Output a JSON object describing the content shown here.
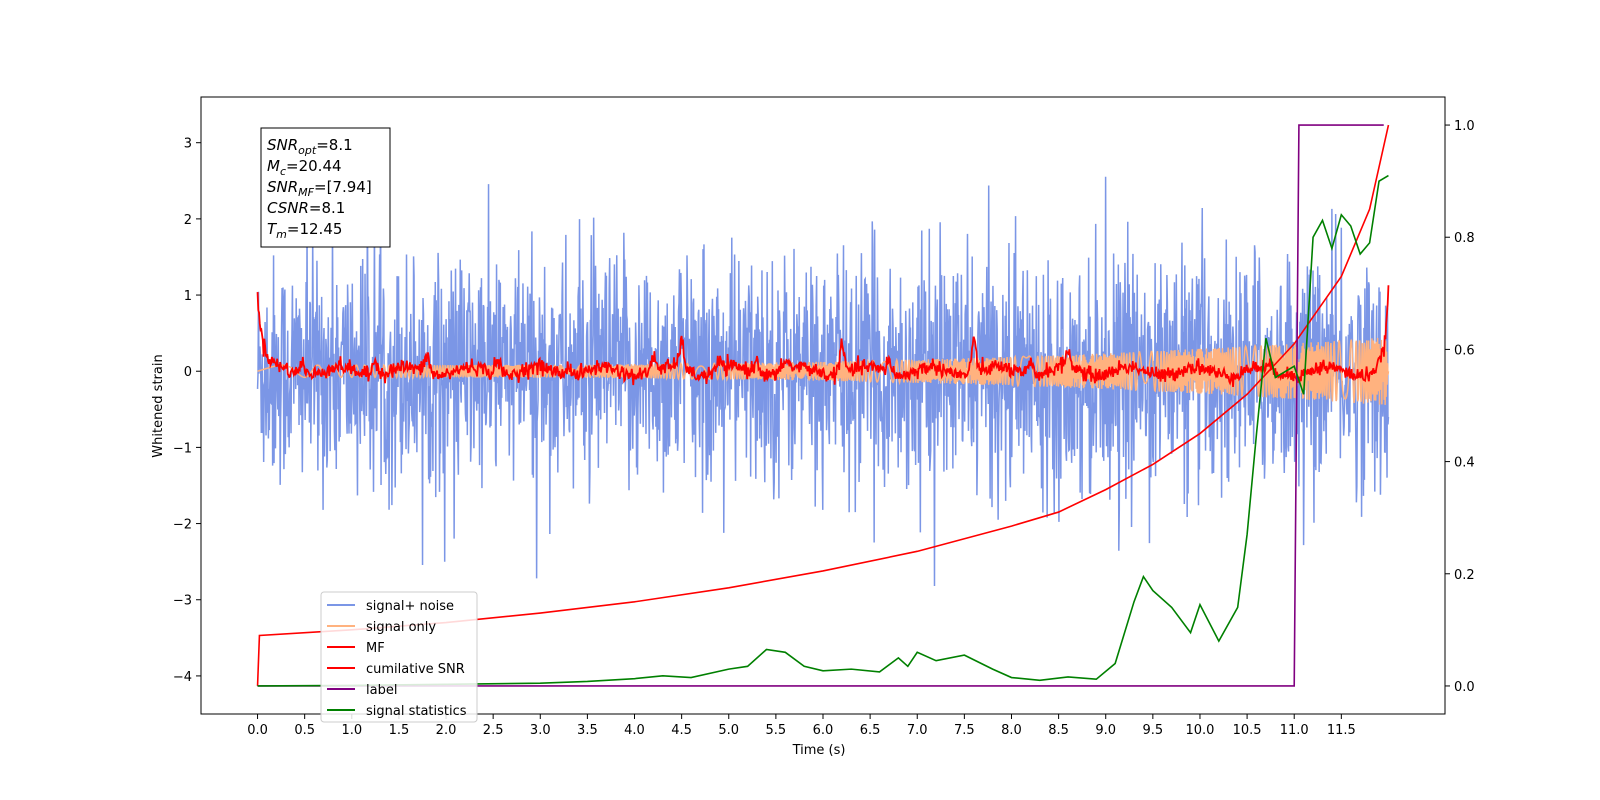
{
  "chart_data": {
    "type": "line",
    "xlabel": "Time (s)",
    "ylabel_left": "Whitened strain",
    "ylim_left": [
      -4.5,
      3.6
    ],
    "ylim_right": [
      -0.05,
      1.05
    ],
    "xlim": [
      -0.6,
      12.6
    ],
    "x_ticks": [
      "0.0",
      "0.5",
      "1.0",
      "1.5",
      "2.0",
      "2.5",
      "3.0",
      "3.5",
      "4.0",
      "4.5",
      "5.0",
      "5.5",
      "6.0",
      "6.5",
      "7.0",
      "7.5",
      "8.0",
      "8.5",
      "9.0",
      "9.5",
      "10.0",
      "10.5",
      "11.0",
      "11.5"
    ],
    "y_left_ticks": [
      "3",
      "2",
      "1",
      "0",
      "−1",
      "−2",
      "−3",
      "−4"
    ],
    "y_right_ticks": [
      "1.0",
      "0.8",
      "0.6",
      "0.4",
      "0.2",
      "0.0"
    ],
    "grid": false,
    "legend_position": "lower-left",
    "annotation": [
      {
        "base": "SNR",
        "sub": "opt",
        "text": "=8.1"
      },
      {
        "base": "M",
        "sub": "c",
        "text": "=20.44"
      },
      {
        "base": "SNR",
        "sub": "MF",
        "text": "=[7.94]"
      },
      {
        "base": "CSNR",
        "sub": "",
        "text": "=8.1"
      },
      {
        "base": "T",
        "sub": "m",
        "text": "=12.45"
      }
    ],
    "series": [
      {
        "name": "signal+ noise",
        "color": "#7b96e6",
        "axis": "left",
        "style": "noise",
        "x_range": [
          0,
          12
        ],
        "mean": 0,
        "std": 0.75
      },
      {
        "name": "signal only",
        "color": "#ffb27f",
        "axis": "left",
        "style": "chirp",
        "x_range": [
          0,
          12
        ],
        "amplitude_start": 0.08,
        "amplitude_end": 0.45
      },
      {
        "name": "MF",
        "color": "#ff0000",
        "axis": "left",
        "style": "matched-filter",
        "x_range": [
          0,
          12
        ],
        "start_value": 0.95,
        "end_value": 1.0,
        "baseline": 0.0,
        "peaks": [
          [
            0.48,
            0.17
          ],
          [
            1.25,
            0.2
          ],
          [
            1.8,
            0.22
          ],
          [
            2.55,
            0.2
          ],
          [
            3.3,
            0.13
          ],
          [
            4.2,
            0.17
          ],
          [
            4.5,
            0.35
          ],
          [
            4.9,
            0.12
          ],
          [
            5.3,
            0.18
          ],
          [
            5.6,
            0.15
          ],
          [
            6.2,
            0.35
          ],
          [
            6.7,
            0.18
          ],
          [
            7.6,
            0.4
          ],
          [
            8.2,
            0.15
          ],
          [
            8.6,
            0.2
          ]
        ]
      },
      {
        "name": "cumilative SNR",
        "color": "#ff0000",
        "axis": "right",
        "style": "cumulative",
        "points": [
          [
            0,
            0.0
          ],
          [
            0.02,
            0.09
          ],
          [
            1,
            0.1
          ],
          [
            2,
            0.113
          ],
          [
            3,
            0.13
          ],
          [
            4,
            0.15
          ],
          [
            5,
            0.175
          ],
          [
            6,
            0.205
          ],
          [
            7,
            0.24
          ],
          [
            8,
            0.285
          ],
          [
            8.5,
            0.31
          ],
          [
            9,
            0.35
          ],
          [
            9.5,
            0.395
          ],
          [
            10,
            0.45
          ],
          [
            10.5,
            0.52
          ],
          [
            11,
            0.61
          ],
          [
            11.5,
            0.73
          ],
          [
            11.8,
            0.85
          ],
          [
            12,
            1.0
          ]
        ]
      },
      {
        "name": "label",
        "color": "#800080",
        "axis": "right",
        "style": "step",
        "points": [
          [
            0,
            0
          ],
          [
            11.0,
            0
          ],
          [
            11.05,
            1
          ],
          [
            11.95,
            1
          ]
        ]
      },
      {
        "name": "signal statistics",
        "color": "#008000",
        "axis": "right",
        "style": "line",
        "points": [
          [
            0,
            0.0
          ],
          [
            1,
            0.001
          ],
          [
            2,
            0.003
          ],
          [
            3,
            0.005
          ],
          [
            3.5,
            0.008
          ],
          [
            4,
            0.013
          ],
          [
            4.3,
            0.018
          ],
          [
            4.6,
            0.015
          ],
          [
            5,
            0.03
          ],
          [
            5.2,
            0.035
          ],
          [
            5.4,
            0.065
          ],
          [
            5.6,
            0.06
          ],
          [
            5.8,
            0.035
          ],
          [
            6,
            0.027
          ],
          [
            6.3,
            0.03
          ],
          [
            6.6,
            0.025
          ],
          [
            6.8,
            0.05
          ],
          [
            6.9,
            0.035
          ],
          [
            7.0,
            0.06
          ],
          [
            7.2,
            0.045
          ],
          [
            7.5,
            0.055
          ],
          [
            7.8,
            0.03
          ],
          [
            8,
            0.015
          ],
          [
            8.3,
            0.01
          ],
          [
            8.6,
            0.016
          ],
          [
            8.9,
            0.012
          ],
          [
            9.1,
            0.04
          ],
          [
            9.3,
            0.15
          ],
          [
            9.4,
            0.195
          ],
          [
            9.5,
            0.17
          ],
          [
            9.7,
            0.14
          ],
          [
            9.9,
            0.095
          ],
          [
            10.0,
            0.145
          ],
          [
            10.2,
            0.08
          ],
          [
            10.4,
            0.14
          ],
          [
            10.5,
            0.27
          ],
          [
            10.6,
            0.45
          ],
          [
            10.7,
            0.62
          ],
          [
            10.8,
            0.55
          ],
          [
            10.9,
            0.56
          ],
          [
            11.0,
            0.57
          ],
          [
            11.1,
            0.52
          ],
          [
            11.2,
            0.8
          ],
          [
            11.3,
            0.83
          ],
          [
            11.4,
            0.78
          ],
          [
            11.5,
            0.84
          ],
          [
            11.6,
            0.82
          ],
          [
            11.7,
            0.77
          ],
          [
            11.8,
            0.79
          ],
          [
            11.9,
            0.9
          ],
          [
            12,
            0.91
          ]
        ]
      }
    ]
  }
}
